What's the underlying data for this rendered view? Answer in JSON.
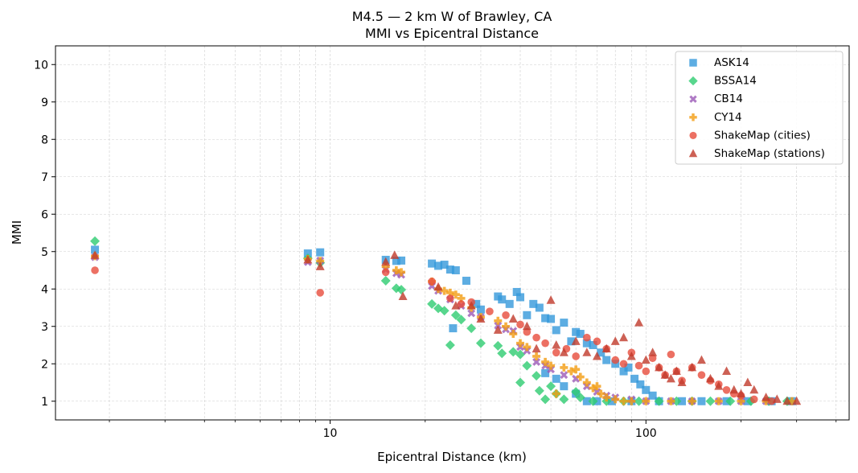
{
  "chart_data": {
    "type": "scatter",
    "title": "M4.5 — 2 km W of Brawley, CA",
    "subtitle": "MMI vs Epicentral Distance",
    "xlabel": "Epicentral Distance (km)",
    "ylabel": "MMI",
    "xscale": "log",
    "xlim": [
      1.35,
      440
    ],
    "ylim": [
      0.5,
      10.5
    ],
    "x_ticks": [
      10,
      100
    ],
    "x_tick_labels": [
      "10",
      "100"
    ],
    "y_ticks": [
      1,
      2,
      3,
      4,
      5,
      6,
      7,
      8,
      9,
      10
    ],
    "y_tick_labels": [
      "1",
      "2",
      "3",
      "4",
      "5",
      "6",
      "7",
      "8",
      "9",
      "10"
    ],
    "grid": true,
    "legend_position": "top-right",
    "series": [
      {
        "name": "ASK14",
        "marker": "square",
        "color": "#3498db",
        "points": [
          [
            1.8,
            5.05
          ],
          [
            8.5,
            4.95
          ],
          [
            9.3,
            4.98
          ],
          [
            15,
            4.78
          ],
          [
            16.2,
            4.75
          ],
          [
            16.8,
            4.76
          ],
          [
            21,
            4.68
          ],
          [
            22,
            4.62
          ],
          [
            23,
            4.65
          ],
          [
            24,
            4.52
          ],
          [
            25,
            4.5
          ],
          [
            24.5,
            2.95
          ],
          [
            27,
            4.22
          ],
          [
            29,
            3.6
          ],
          [
            30,
            3.45
          ],
          [
            34,
            3.8
          ],
          [
            35,
            3.72
          ],
          [
            37,
            3.6
          ],
          [
            39,
            3.92
          ],
          [
            40,
            3.78
          ],
          [
            42,
            3.3
          ],
          [
            44,
            3.6
          ],
          [
            46,
            3.5
          ],
          [
            48,
            3.22
          ],
          [
            50,
            3.2
          ],
          [
            52,
            2.9
          ],
          [
            55,
            3.1
          ],
          [
            58,
            2.6
          ],
          [
            60,
            2.85
          ],
          [
            62,
            2.8
          ],
          [
            65,
            2.55
          ],
          [
            68,
            2.5
          ],
          [
            72,
            2.3
          ],
          [
            75,
            2.1
          ],
          [
            80,
            2.0
          ],
          [
            85,
            1.8
          ],
          [
            88,
            1.9
          ],
          [
            92,
            1.6
          ],
          [
            96,
            1.45
          ],
          [
            100,
            1.3
          ],
          [
            105,
            1.15
          ],
          [
            48,
            1.75
          ],
          [
            52,
            1.6
          ],
          [
            55,
            1.4
          ],
          [
            60,
            1.2
          ],
          [
            65,
            1.0
          ],
          [
            70,
            1.0
          ],
          [
            78,
            1.0
          ],
          [
            90,
            1.0
          ],
          [
            110,
            1.0
          ],
          [
            130,
            1.0
          ],
          [
            150,
            1.0
          ],
          [
            180,
            1.0
          ],
          [
            210,
            1.0
          ],
          [
            250,
            1.0
          ],
          [
            290,
            1.0
          ]
        ]
      },
      {
        "name": "BSSA14",
        "marker": "diamond",
        "color": "#2ecc71",
        "points": [
          [
            1.8,
            5.28
          ],
          [
            8.5,
            4.82
          ],
          [
            9.3,
            4.7
          ],
          [
            15,
            4.22
          ],
          [
            16.2,
            4.02
          ],
          [
            16.8,
            3.98
          ],
          [
            21,
            3.6
          ],
          [
            22,
            3.48
          ],
          [
            23,
            3.42
          ],
          [
            24,
            2.5
          ],
          [
            25,
            3.3
          ],
          [
            26,
            3.18
          ],
          [
            28,
            2.95
          ],
          [
            30,
            2.55
          ],
          [
            34,
            2.48
          ],
          [
            35,
            2.28
          ],
          [
            38,
            2.32
          ],
          [
            40,
            2.25
          ],
          [
            40,
            1.5
          ],
          [
            42,
            1.95
          ],
          [
            45,
            1.68
          ],
          [
            46,
            1.28
          ],
          [
            48,
            1.05
          ],
          [
            50,
            1.4
          ],
          [
            52,
            1.2
          ],
          [
            55,
            1.05
          ],
          [
            60,
            1.25
          ],
          [
            62,
            1.1
          ],
          [
            68,
            1.0
          ],
          [
            75,
            1.0
          ],
          [
            85,
            1.0
          ],
          [
            95,
            1.0
          ],
          [
            110,
            1.0
          ],
          [
            125,
            1.0
          ],
          [
            140,
            1.0
          ],
          [
            160,
            1.0
          ],
          [
            185,
            1.0
          ],
          [
            215,
            1.0
          ],
          [
            245,
            1.0
          ],
          [
            280,
            1.0
          ]
        ]
      },
      {
        "name": "CB14",
        "marker": "x",
        "color": "#9b59b6",
        "points": [
          [
            1.8,
            4.85
          ],
          [
            8.5,
            4.72
          ],
          [
            9.3,
            4.76
          ],
          [
            15,
            4.52
          ],
          [
            16.2,
            4.42
          ],
          [
            16.8,
            4.38
          ],
          [
            21,
            4.08
          ],
          [
            22,
            3.95
          ],
          [
            24,
            3.72
          ],
          [
            26,
            3.55
          ],
          [
            28,
            3.35
          ],
          [
            30,
            3.25
          ],
          [
            34,
            3.02
          ],
          [
            36,
            2.92
          ],
          [
            38,
            2.88
          ],
          [
            40,
            2.45
          ],
          [
            42,
            2.35
          ],
          [
            45,
            2.05
          ],
          [
            48,
            1.95
          ],
          [
            50,
            1.85
          ],
          [
            55,
            1.7
          ],
          [
            60,
            1.6
          ],
          [
            65,
            1.4
          ],
          [
            70,
            1.25
          ],
          [
            75,
            1.15
          ],
          [
            80,
            1.1
          ],
          [
            90,
            1.05
          ],
          [
            100,
            1.0
          ],
          [
            120,
            1.0
          ],
          [
            140,
            1.0
          ],
          [
            170,
            1.0
          ],
          [
            200,
            1.0
          ],
          [
            240,
            1.0
          ]
        ]
      },
      {
        "name": "CY14",
        "marker": "plus",
        "color": "#f39c12",
        "points": [
          [
            1.8,
            4.88
          ],
          [
            8.5,
            4.8
          ],
          [
            9.3,
            4.75
          ],
          [
            15,
            4.6
          ],
          [
            16.2,
            4.5
          ],
          [
            16.8,
            4.45
          ],
          [
            21,
            4.2
          ],
          [
            22,
            4.0
          ],
          [
            23,
            3.95
          ],
          [
            24,
            3.9
          ],
          [
            25,
            3.85
          ],
          [
            26,
            3.75
          ],
          [
            28,
            3.5
          ],
          [
            30,
            3.25
          ],
          [
            34,
            3.15
          ],
          [
            36,
            3.0
          ],
          [
            38,
            2.8
          ],
          [
            40,
            2.55
          ],
          [
            42,
            2.45
          ],
          [
            45,
            2.2
          ],
          [
            48,
            2.05
          ],
          [
            50,
            1.95
          ],
          [
            52,
            1.2
          ],
          [
            55,
            1.9
          ],
          [
            58,
            1.8
          ],
          [
            60,
            1.85
          ],
          [
            62,
            1.65
          ],
          [
            65,
            1.5
          ],
          [
            68,
            1.35
          ],
          [
            70,
            1.4
          ],
          [
            72,
            1.2
          ],
          [
            75,
            1.1
          ],
          [
            80,
            1.05
          ],
          [
            85,
            1.0
          ],
          [
            90,
            1.0
          ],
          [
            100,
            1.0
          ],
          [
            120,
            1.0
          ],
          [
            140,
            1.0
          ],
          [
            170,
            1.0
          ],
          [
            200,
            1.0
          ],
          [
            240,
            1.0
          ],
          [
            290,
            1.0
          ]
        ]
      },
      {
        "name": "ShakeMap (cities)",
        "marker": "circle",
        "color": "#e74c3c",
        "points": [
          [
            1.8,
            4.5
          ],
          [
            9.3,
            3.9
          ],
          [
            15,
            4.45
          ],
          [
            21,
            4.2
          ],
          [
            24,
            3.75
          ],
          [
            26,
            3.6
          ],
          [
            28,
            3.65
          ],
          [
            32,
            3.4
          ],
          [
            36,
            3.3
          ],
          [
            40,
            3.05
          ],
          [
            42,
            2.85
          ],
          [
            45,
            2.7
          ],
          [
            48,
            2.55
          ],
          [
            52,
            2.3
          ],
          [
            56,
            2.4
          ],
          [
            60,
            2.2
          ],
          [
            65,
            2.7
          ],
          [
            70,
            2.6
          ],
          [
            75,
            2.4
          ],
          [
            80,
            2.1
          ],
          [
            85,
            2.0
          ],
          [
            90,
            2.3
          ],
          [
            95,
            1.95
          ],
          [
            100,
            1.8
          ],
          [
            105,
            2.15
          ],
          [
            110,
            1.9
          ],
          [
            115,
            1.7
          ],
          [
            120,
            2.25
          ],
          [
            125,
            1.8
          ],
          [
            130,
            1.55
          ],
          [
            140,
            1.9
          ],
          [
            150,
            1.7
          ],
          [
            160,
            1.55
          ],
          [
            170,
            1.45
          ],
          [
            180,
            1.3
          ],
          [
            190,
            1.2
          ],
          [
            200,
            1.15
          ],
          [
            220,
            1.05
          ],
          [
            250,
            1.0
          ]
        ]
      },
      {
        "name": "ShakeMap (stations)",
        "marker": "triangle",
        "color": "#c0392b",
        "points": [
          [
            1.8,
            4.9
          ],
          [
            8.5,
            4.78
          ],
          [
            9.3,
            4.6
          ],
          [
            15,
            4.72
          ],
          [
            16,
            4.9
          ],
          [
            17,
            3.8
          ],
          [
            22,
            4.05
          ],
          [
            25,
            3.55
          ],
          [
            28,
            3.55
          ],
          [
            30,
            3.2
          ],
          [
            34,
            2.9
          ],
          [
            38,
            3.2
          ],
          [
            42,
            3.0
          ],
          [
            45,
            2.4
          ],
          [
            50,
            3.7
          ],
          [
            52,
            2.5
          ],
          [
            55,
            2.3
          ],
          [
            60,
            2.6
          ],
          [
            65,
            2.3
          ],
          [
            70,
            2.2
          ],
          [
            75,
            2.4
          ],
          [
            80,
            2.6
          ],
          [
            85,
            2.7
          ],
          [
            90,
            2.2
          ],
          [
            95,
            3.1
          ],
          [
            100,
            2.1
          ],
          [
            105,
            2.3
          ],
          [
            110,
            1.9
          ],
          [
            115,
            1.7
          ],
          [
            120,
            1.6
          ],
          [
            125,
            1.8
          ],
          [
            130,
            1.5
          ],
          [
            140,
            1.9
          ],
          [
            150,
            2.1
          ],
          [
            160,
            1.6
          ],
          [
            170,
            1.4
          ],
          [
            180,
            1.8
          ],
          [
            190,
            1.3
          ],
          [
            200,
            1.2
          ],
          [
            210,
            1.5
          ],
          [
            220,
            1.3
          ],
          [
            240,
            1.1
          ],
          [
            260,
            1.05
          ],
          [
            280,
            1.0
          ],
          [
            300,
            1.0
          ]
        ]
      }
    ]
  }
}
